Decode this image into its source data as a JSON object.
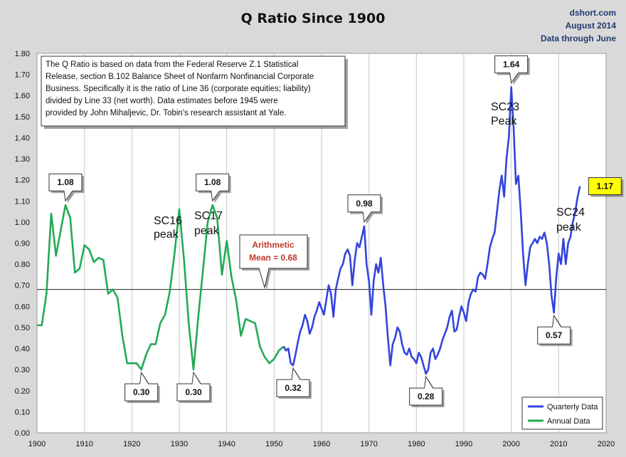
{
  "chart_data": {
    "type": "line",
    "title": "Q Ratio Since 1900",
    "source": [
      "dshort.com",
      "August 2014",
      "Data through June"
    ],
    "xlim": [
      1900,
      2020
    ],
    "ylim": [
      0,
      1.8
    ],
    "x_ticks": [
      "1900",
      "1910",
      "1920",
      "1930",
      "1940",
      "1950",
      "1960",
      "1970",
      "1980",
      "1990",
      "2000",
      "2010",
      "2020"
    ],
    "y_ticks": [
      "0.00",
      "0.10",
      "0.20",
      "0.30",
      "0.40",
      "0.50",
      "0.60",
      "0.70",
      "0.80",
      "0.90",
      "1.00",
      "1.10",
      "1.20",
      "1.30",
      "1.40",
      "1.50",
      "1.60",
      "1.70",
      "1.80"
    ],
    "note": [
      "The Q Ratio is based on data from the Federal Reserve Z.1 Statistical",
      "Release, section B.102 Balance Sheet of Nonfarm Nonfinancial Corporate",
      "Business. Specifically it is the ratio of Line 36 (corporate equities; liability)",
      "divided by Line 33 (net worth).  Data estimates before 1945 were",
      "provided by John Mihaljevic, Dr. Tobin's research assistant at Yale."
    ],
    "mean": {
      "value": 0.68,
      "line1": "Arithmetic",
      "line2": "Mean = 0.68"
    },
    "legend": [
      {
        "name": "Quarterly Data",
        "color": "#3344dd"
      },
      {
        "name": "Annual Data",
        "color": "#22aa55"
      }
    ],
    "series": [
      {
        "name": "Annual Data",
        "color": "#22aa55",
        "points": [
          [
            1900,
            0.51
          ],
          [
            1901,
            0.51
          ],
          [
            1902,
            0.66
          ],
          [
            1903,
            1.04
          ],
          [
            1904,
            0.84
          ],
          [
            1905,
            0.96
          ],
          [
            1906,
            1.08
          ],
          [
            1907,
            1.02
          ],
          [
            1908,
            0.76
          ],
          [
            1909,
            0.78
          ],
          [
            1910,
            0.89
          ],
          [
            1911,
            0.87
          ],
          [
            1912,
            0.81
          ],
          [
            1913,
            0.83
          ],
          [
            1914,
            0.82
          ],
          [
            1915,
            0.66
          ],
          [
            1916,
            0.68
          ],
          [
            1917,
            0.64
          ],
          [
            1918,
            0.46
          ],
          [
            1919,
            0.33
          ],
          [
            1920,
            0.33
          ],
          [
            1921,
            0.33
          ],
          [
            1922,
            0.3
          ],
          [
            1923,
            0.37
          ],
          [
            1924,
            0.42
          ],
          [
            1925,
            0.42
          ],
          [
            1926,
            0.52
          ],
          [
            1927,
            0.56
          ],
          [
            1928,
            0.67
          ],
          [
            1929,
            0.85
          ],
          [
            1930,
            1.06
          ],
          [
            1931,
            0.82
          ],
          [
            1932,
            0.52
          ],
          [
            1933,
            0.3
          ],
          [
            1934,
            0.55
          ],
          [
            1935,
            0.77
          ],
          [
            1936,
            1.0
          ],
          [
            1937,
            1.08
          ],
          [
            1938,
            1.02
          ],
          [
            1939,
            0.75
          ],
          [
            1940,
            0.91
          ],
          [
            1941,
            0.74
          ],
          [
            1942,
            0.63
          ],
          [
            1943,
            0.46
          ],
          [
            1944,
            0.54
          ],
          [
            1945,
            0.53
          ],
          [
            1946,
            0.52
          ],
          [
            1947,
            0.41
          ],
          [
            1948,
            0.36
          ],
          [
            1949,
            0.33
          ],
          [
            1950,
            0.35
          ],
          [
            1951,
            0.39
          ],
          [
            1952,
            0.41
          ]
        ]
      },
      {
        "name": "Quarterly Data",
        "color": "#3344dd",
        "points": [
          [
            1952,
            0.41
          ],
          [
            1952.5,
            0.39
          ],
          [
            1953,
            0.4
          ],
          [
            1953.5,
            0.33
          ],
          [
            1954,
            0.32
          ],
          [
            1954.5,
            0.37
          ],
          [
            1955,
            0.43
          ],
          [
            1955.5,
            0.48
          ],
          [
            1956,
            0.51
          ],
          [
            1956.5,
            0.56
          ],
          [
            1957,
            0.53
          ],
          [
            1957.5,
            0.47
          ],
          [
            1958,
            0.5
          ],
          [
            1958.5,
            0.55
          ],
          [
            1959,
            0.58
          ],
          [
            1959.5,
            0.62
          ],
          [
            1960,
            0.59
          ],
          [
            1960.5,
            0.56
          ],
          [
            1961,
            0.63
          ],
          [
            1961.5,
            0.7
          ],
          [
            1962,
            0.66
          ],
          [
            1962.5,
            0.55
          ],
          [
            1963,
            0.68
          ],
          [
            1963.5,
            0.73
          ],
          [
            1964,
            0.78
          ],
          [
            1964.5,
            0.8
          ],
          [
            1965,
            0.85
          ],
          [
            1965.5,
            0.87
          ],
          [
            1966,
            0.84
          ],
          [
            1966.5,
            0.7
          ],
          [
            1967,
            0.82
          ],
          [
            1967.5,
            0.9
          ],
          [
            1968,
            0.88
          ],
          [
            1968.5,
            0.93
          ],
          [
            1969,
            0.98
          ],
          [
            1969.5,
            0.8
          ],
          [
            1970,
            0.72
          ],
          [
            1970.5,
            0.56
          ],
          [
            1971,
            0.72
          ],
          [
            1971.5,
            0.8
          ],
          [
            1972,
            0.76
          ],
          [
            1972.5,
            0.83
          ],
          [
            1973,
            0.7
          ],
          [
            1973.5,
            0.6
          ],
          [
            1974,
            0.45
          ],
          [
            1974.5,
            0.32
          ],
          [
            1975,
            0.42
          ],
          [
            1975.5,
            0.45
          ],
          [
            1976,
            0.5
          ],
          [
            1976.5,
            0.48
          ],
          [
            1977,
            0.42
          ],
          [
            1977.5,
            0.38
          ],
          [
            1978,
            0.37
          ],
          [
            1978.5,
            0.4
          ],
          [
            1979,
            0.36
          ],
          [
            1979.5,
            0.35
          ],
          [
            1980,
            0.33
          ],
          [
            1980.5,
            0.38
          ],
          [
            1981,
            0.36
          ],
          [
            1981.5,
            0.32
          ],
          [
            1982,
            0.28
          ],
          [
            1982.5,
            0.3
          ],
          [
            1983,
            0.38
          ],
          [
            1983.5,
            0.4
          ],
          [
            1984,
            0.35
          ],
          [
            1984.5,
            0.37
          ],
          [
            1985,
            0.4
          ],
          [
            1985.5,
            0.44
          ],
          [
            1986,
            0.47
          ],
          [
            1986.5,
            0.5
          ],
          [
            1987,
            0.55
          ],
          [
            1987.5,
            0.58
          ],
          [
            1988,
            0.48
          ],
          [
            1988.5,
            0.49
          ],
          [
            1989,
            0.55
          ],
          [
            1989.5,
            0.6
          ],
          [
            1990,
            0.57
          ],
          [
            1990.5,
            0.53
          ],
          [
            1991,
            0.62
          ],
          [
            1991.5,
            0.66
          ],
          [
            1992,
            0.68
          ],
          [
            1992.5,
            0.67
          ],
          [
            1993,
            0.74
          ],
          [
            1993.5,
            0.76
          ],
          [
            1994,
            0.75
          ],
          [
            1994.5,
            0.73
          ],
          [
            1995,
            0.8
          ],
          [
            1995.5,
            0.88
          ],
          [
            1996,
            0.92
          ],
          [
            1996.5,
            0.95
          ],
          [
            1997,
            1.05
          ],
          [
            1997.5,
            1.15
          ],
          [
            1998,
            1.22
          ],
          [
            1998.5,
            1.12
          ],
          [
            1999,
            1.3
          ],
          [
            1999.5,
            1.4
          ],
          [
            2000,
            1.64
          ],
          [
            2000.5,
            1.45
          ],
          [
            2001,
            1.18
          ],
          [
            2001.5,
            1.22
          ],
          [
            2002,
            1.05
          ],
          [
            2002.5,
            0.85
          ],
          [
            2003,
            0.7
          ],
          [
            2003.5,
            0.8
          ],
          [
            2004,
            0.88
          ],
          [
            2004.5,
            0.9
          ],
          [
            2005,
            0.92
          ],
          [
            2005.5,
            0.9
          ],
          [
            2006,
            0.93
          ],
          [
            2006.5,
            0.92
          ],
          [
            2007,
            0.95
          ],
          [
            2007.5,
            0.9
          ],
          [
            2008,
            0.8
          ],
          [
            2008.5,
            0.65
          ],
          [
            2009,
            0.57
          ],
          [
            2009.5,
            0.74
          ],
          [
            2010,
            0.85
          ],
          [
            2010.5,
            0.8
          ],
          [
            2011,
            0.92
          ],
          [
            2011.5,
            0.8
          ],
          [
            2012,
            0.9
          ],
          [
            2012.5,
            0.93
          ],
          [
            2013,
            1.0
          ],
          [
            2013.5,
            1.05
          ],
          [
            2014,
            1.12
          ],
          [
            2014.5,
            1.17
          ]
        ]
      }
    ],
    "callouts": [
      {
        "label": "1.08",
        "x": 1906,
        "y": 1.08
      },
      {
        "label": "0.30",
        "x": 1922,
        "y": 0.3
      },
      {
        "label": "0.30",
        "x": 1933,
        "y": 0.3
      },
      {
        "label": "1.08",
        "x": 1937,
        "y": 1.08
      },
      {
        "label": "0.32",
        "x": 1954,
        "y": 0.32
      },
      {
        "label": "0.98",
        "x": 1969,
        "y": 0.98
      },
      {
        "label": "0.28",
        "x": 1982,
        "y": 0.28
      },
      {
        "label": "1.64",
        "x": 2000,
        "y": 1.64
      },
      {
        "label": "0.57",
        "x": 2009,
        "y": 0.57
      },
      {
        "label": "1.17",
        "x": 2014.5,
        "y": 1.17,
        "highlight": "#ffff00"
      }
    ],
    "peaks": [
      {
        "line1": "SC16",
        "line2": "peak"
      },
      {
        "line1": "SC17",
        "line2": "peak"
      },
      {
        "line1": "SC23",
        "line2": "Peak"
      },
      {
        "line1": "SC24",
        "line2": "peak"
      }
    ]
  }
}
